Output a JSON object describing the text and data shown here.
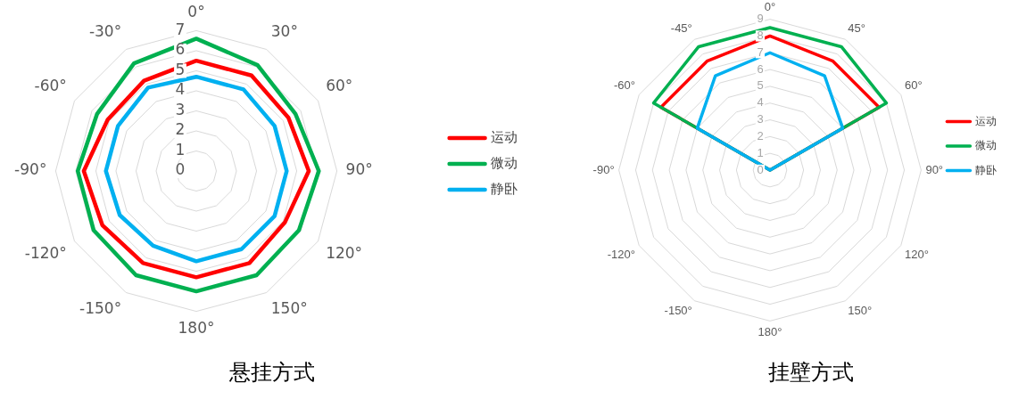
{
  "chart_data": [
    {
      "type": "radar",
      "title": "悬挂方式",
      "categories": [
        "0°",
        "30°",
        "60°",
        "90°",
        "120°",
        "150°",
        "180°",
        "-150°",
        "-120°",
        "-90°",
        "-60°",
        "-30°"
      ],
      "series": [
        {
          "name": "运动",
          "color": "#ff0000",
          "values": [
            5.5,
            5.5,
            5.3,
            5.6,
            5.1,
            5.3,
            5.3,
            5.3,
            5.4,
            5.6,
            5.1,
            5.2
          ]
        },
        {
          "name": "微动",
          "color": "#00b050",
          "values": [
            6.6,
            6.1,
            5.7,
            6.1,
            5.9,
            6.0,
            6.0,
            6.0,
            5.9,
            5.9,
            5.7,
            6.2
          ]
        },
        {
          "name": "静卧",
          "color": "#00b0f0",
          "values": [
            4.7,
            4.7,
            4.5,
            4.5,
            4.5,
            4.5,
            4.5,
            4.3,
            4.4,
            4.5,
            4.5,
            4.8
          ]
        }
      ],
      "ylim": [
        0,
        7
      ],
      "yticks": [
        0,
        1,
        2,
        3,
        4,
        5,
        6,
        7
      ],
      "grid": true,
      "legend": "right",
      "marker": "none"
    },
    {
      "type": "radar",
      "title": "挂壁方式",
      "categories": [
        "0°",
        "45°",
        "60°",
        "90°",
        "120°",
        "150°",
        "180°",
        "-150°",
        "-120°",
        "-90°",
        "-60°",
        "-45°"
      ],
      "series": [
        {
          "name": "运动",
          "color": "#ff0000",
          "values": [
            8,
            7.5,
            7.5,
            0,
            0,
            0,
            0,
            0,
            0,
            0,
            7.5,
            7.5
          ]
        },
        {
          "name": "微动",
          "color": "#00b050",
          "values": [
            8.5,
            8.5,
            8,
            0,
            0,
            0,
            0,
            0,
            0,
            0,
            8,
            8.5
          ]
        },
        {
          "name": "静卧",
          "color": "#00b0f0",
          "values": [
            7,
            6.5,
            5,
            0,
            0,
            0,
            0,
            0,
            0,
            0,
            5,
            6.5
          ]
        }
      ],
      "ylim": [
        0,
        9
      ],
      "yticks": [
        0,
        1,
        2,
        3,
        4,
        5,
        6,
        7,
        8,
        9
      ],
      "grid": true,
      "legend": "right",
      "marker": "none"
    }
  ]
}
